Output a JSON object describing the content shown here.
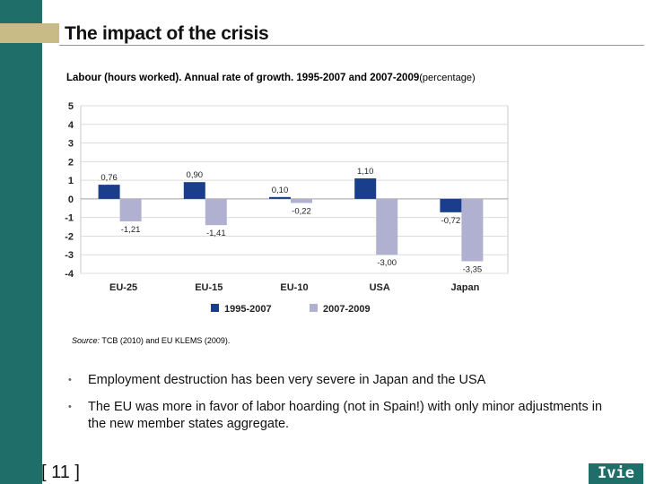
{
  "slide": {
    "title": "The impact of the crisis",
    "subtitle": "Labour (hours worked). Annual rate of growth. 1995-2007 and 2007-2009",
    "subtitle_unit": "(percentage)",
    "source_label": "Source:",
    "source_text": " TCB (2010) and EU KLEMS (2009).",
    "bullets": [
      "Employment destruction has been very severe in Japan and the USA",
      "The EU was more in favor of labor hoarding (not in Spain!) with only minor adjustments in the new member states aggregate."
    ],
    "bullet_marker": "•",
    "page_number": "[ 11 ]",
    "logo_text": "Ivie"
  },
  "colors": {
    "sidebar": "#1f6e6a",
    "accent": "#c9bb85",
    "series1": "#1a3e8c",
    "series2": "#b0b1d1"
  },
  "chart_data": {
    "type": "bar",
    "categories": [
      "EU-25",
      "EU-15",
      "EU-10",
      "USA",
      "Japan"
    ],
    "series": [
      {
        "name": "1995-2007",
        "values": [
          0.76,
          0.9,
          0.1,
          1.1,
          -0.72
        ],
        "labels": [
          "0,76",
          "0,90",
          "0,10",
          "1,10",
          "-0,72"
        ]
      },
      {
        "name": "2007-2009",
        "values": [
          -1.21,
          -1.41,
          -0.22,
          -3.0,
          -3.35
        ],
        "labels": [
          "-1,21",
          "-1,41",
          "-0,22",
          "-3,00",
          "-3,35"
        ]
      }
    ],
    "yticks": [
      5,
      4,
      3,
      2,
      1,
      0,
      -1,
      -2,
      -3,
      -4
    ],
    "ylim": [
      -4,
      5
    ],
    "grid": true,
    "legend": "bottom"
  }
}
